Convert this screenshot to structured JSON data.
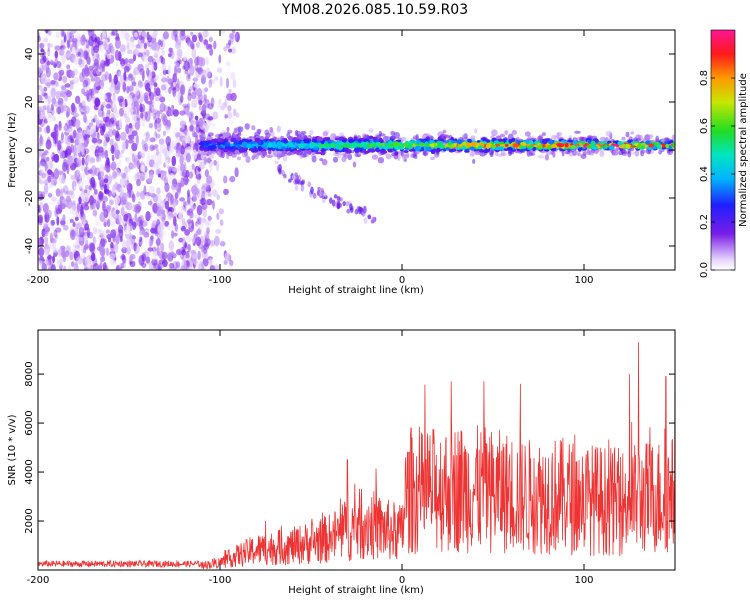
{
  "title": "YM08.2026.085.10.59.R03",
  "colors": {
    "line": "#ee3333",
    "frame": "#000000"
  },
  "chart_data": [
    {
      "type": "heatmap",
      "title": "",
      "xlabel": "Height of straight line (km)",
      "ylabel": "Frequency (Hz)",
      "xlim": [
        -200,
        150
      ],
      "ylim": [
        -50,
        50
      ],
      "x_ticks": [
        -200,
        -100,
        0,
        100
      ],
      "y_ticks": [
        -40,
        -20,
        0,
        20,
        40
      ],
      "x_tick_labels": [
        "-200",
        "-100",
        "0",
        "100"
      ],
      "y_tick_labels": [
        "-40",
        "-20",
        "0",
        "20",
        "40"
      ],
      "colorbar": {
        "label": "Normalized spectral amplitude",
        "range": [
          0,
          1
        ],
        "ticks": [
          0.0,
          0.2,
          0.4,
          0.6,
          0.8
        ],
        "tick_labels": [
          "0.0",
          "0.2",
          "0.4",
          "0.6",
          "0.8"
        ]
      },
      "features": [
        {
          "name": "diffuse noise",
          "x_range": [
            -200,
            -105
          ],
          "freq_range": [
            -50,
            50
          ],
          "amplitude": 0.1
        },
        {
          "name": "spectral line",
          "x_range": [
            -110,
            150
          ],
          "frequency": 2,
          "amplitude_start": 0.35,
          "amplitude_end": 1.0
        },
        {
          "name": "descending track",
          "x_range": [
            -70,
            -15
          ],
          "freq_range": [
            -8,
            -30
          ],
          "amplitude": 0.1
        }
      ]
    },
    {
      "type": "line",
      "title": "",
      "xlabel": "Height of straight line (km)",
      "ylabel": "SNR (10 * v/v)",
      "xlim": [
        -200,
        150
      ],
      "ylim": [
        0,
        9800
      ],
      "x_ticks": [
        -200,
        -100,
        0,
        100
      ],
      "y_ticks": [
        2000,
        4000,
        6000,
        8000
      ],
      "x_tick_labels": [
        "-200",
        "-100",
        "0",
        "100"
      ],
      "y_tick_labels": [
        "2000",
        "4000",
        "6000",
        "8000"
      ],
      "series": [
        {
          "name": "SNR",
          "x": [
            -200,
            -150,
            -110,
            -100,
            -90,
            -80,
            -70,
            -60,
            -50,
            -40,
            -30,
            -20,
            -10,
            0,
            2,
            10,
            20,
            30,
            40,
            50,
            60,
            70,
            80,
            90,
            100,
            110,
            120,
            130,
            140,
            150
          ],
          "values": [
            250,
            250,
            250,
            400,
            800,
            1100,
            1200,
            1300,
            1500,
            1700,
            2200,
            2600,
            2200,
            2000,
            4000,
            4200,
            4400,
            4500,
            4400,
            4300,
            4200,
            4000,
            4100,
            4000,
            3900,
            3800,
            3700,
            3900,
            4000,
            4100
          ],
          "peaks": [
            [
              -75,
              2000
            ],
            [
              -30,
              4500
            ],
            [
              5,
              5800
            ],
            [
              27,
              7700
            ],
            [
              45,
              7700
            ],
            [
              65,
              7600
            ],
            [
              125,
              8000
            ],
            [
              130,
              9300
            ],
            [
              145,
              7900
            ],
            [
              150,
              9700
            ]
          ]
        }
      ]
    }
  ]
}
